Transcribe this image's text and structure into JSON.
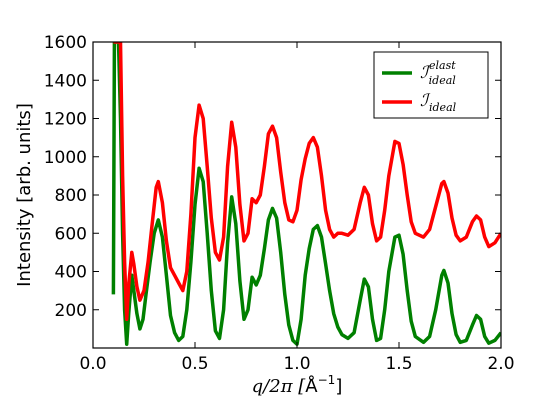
{
  "chart_data": {
    "type": "line",
    "title": "",
    "xlabel_prefix": "q/2π [",
    "xlabel_unit": "Å",
    "xlabel_exp": "−1",
    "xlabel_suffix": "]",
    "ylabel": "Intensity [arb. units]",
    "xlim": [
      0.0,
      2.0
    ],
    "ylim": [
      0,
      1600
    ],
    "x_ticks": [
      {
        "value": 0.0,
        "label": "0.0"
      },
      {
        "value": 0.5,
        "label": "0.5"
      },
      {
        "value": 1.0,
        "label": "1.0"
      },
      {
        "value": 1.5,
        "label": "1.5"
      },
      {
        "value": 2.0,
        "label": "2.0"
      }
    ],
    "y_ticks": [
      {
        "value": 200,
        "label": "200"
      },
      {
        "value": 400,
        "label": "400"
      },
      {
        "value": 600,
        "label": "600"
      },
      {
        "value": 800,
        "label": "800"
      },
      {
        "value": 1000,
        "label": "1000"
      },
      {
        "value": 1200,
        "label": "1200"
      },
      {
        "value": 1400,
        "label": "1400"
      },
      {
        "value": 1600,
        "label": "1600"
      }
    ],
    "grid": false,
    "legend_placement": "top-right",
    "series": [
      {
        "legend_symbol": "ℐ",
        "legend_sup": "elast",
        "legend_sub": "ideal",
        "color": "#008000",
        "points": [
          [
            0.1,
            280
          ],
          [
            0.105,
            1600
          ],
          [
            0.115,
            1600
          ],
          [
            0.125,
            1600
          ],
          [
            0.135,
            1200
          ],
          [
            0.145,
            600
          ],
          [
            0.155,
            200
          ],
          [
            0.165,
            20
          ],
          [
            0.175,
            180
          ],
          [
            0.19,
            380
          ],
          [
            0.2,
            300
          ],
          [
            0.215,
            180
          ],
          [
            0.23,
            100
          ],
          [
            0.245,
            150
          ],
          [
            0.26,
            280
          ],
          [
            0.28,
            450
          ],
          [
            0.3,
            600
          ],
          [
            0.32,
            670
          ],
          [
            0.34,
            580
          ],
          [
            0.36,
            380
          ],
          [
            0.38,
            170
          ],
          [
            0.4,
            80
          ],
          [
            0.42,
            40
          ],
          [
            0.44,
            60
          ],
          [
            0.46,
            200
          ],
          [
            0.48,
            450
          ],
          [
            0.5,
            750
          ],
          [
            0.52,
            940
          ],
          [
            0.54,
            870
          ],
          [
            0.56,
            600
          ],
          [
            0.58,
            300
          ],
          [
            0.6,
            90
          ],
          [
            0.62,
            50
          ],
          [
            0.64,
            200
          ],
          [
            0.66,
            550
          ],
          [
            0.68,
            790
          ],
          [
            0.7,
            650
          ],
          [
            0.72,
            350
          ],
          [
            0.74,
            150
          ],
          [
            0.76,
            200
          ],
          [
            0.78,
            370
          ],
          [
            0.8,
            330
          ],
          [
            0.82,
            380
          ],
          [
            0.84,
            520
          ],
          [
            0.86,
            670
          ],
          [
            0.88,
            730
          ],
          [
            0.9,
            680
          ],
          [
            0.92,
            500
          ],
          [
            0.94,
            280
          ],
          [
            0.96,
            120
          ],
          [
            0.98,
            40
          ],
          [
            1.0,
            20
          ],
          [
            1.02,
            150
          ],
          [
            1.04,
            380
          ],
          [
            1.06,
            520
          ],
          [
            1.08,
            620
          ],
          [
            1.1,
            640
          ],
          [
            1.12,
            580
          ],
          [
            1.14,
            440
          ],
          [
            1.16,
            300
          ],
          [
            1.18,
            180
          ],
          [
            1.2,
            110
          ],
          [
            1.22,
            70
          ],
          [
            1.25,
            50
          ],
          [
            1.28,
            80
          ],
          [
            1.31,
            250
          ],
          [
            1.33,
            360
          ],
          [
            1.35,
            320
          ],
          [
            1.37,
            150
          ],
          [
            1.39,
            40
          ],
          [
            1.41,
            50
          ],
          [
            1.43,
            200
          ],
          [
            1.45,
            400
          ],
          [
            1.48,
            580
          ],
          [
            1.5,
            590
          ],
          [
            1.52,
            490
          ],
          [
            1.54,
            300
          ],
          [
            1.56,
            140
          ],
          [
            1.58,
            60
          ],
          [
            1.62,
            30
          ],
          [
            1.65,
            60
          ],
          [
            1.68,
            200
          ],
          [
            1.71,
            380
          ],
          [
            1.72,
            405
          ],
          [
            1.74,
            340
          ],
          [
            1.76,
            180
          ],
          [
            1.78,
            70
          ],
          [
            1.8,
            30
          ],
          [
            1.83,
            40
          ],
          [
            1.86,
            120
          ],
          [
            1.88,
            170
          ],
          [
            1.9,
            150
          ],
          [
            1.92,
            60
          ],
          [
            1.94,
            25
          ],
          [
            1.97,
            40
          ],
          [
            2.0,
            80
          ]
        ]
      },
      {
        "legend_symbol": "ℐ",
        "legend_sup": "",
        "legend_sub": "ideal",
        "color": "#ff0000",
        "points": [
          [
            0.1,
            1600
          ],
          [
            0.12,
            1600
          ],
          [
            0.135,
            1600
          ],
          [
            0.145,
            900
          ],
          [
            0.155,
            450
          ],
          [
            0.165,
            150
          ],
          [
            0.175,
            330
          ],
          [
            0.19,
            500
          ],
          [
            0.2,
            440
          ],
          [
            0.215,
            320
          ],
          [
            0.23,
            250
          ],
          [
            0.25,
            300
          ],
          [
            0.27,
            450
          ],
          [
            0.29,
            650
          ],
          [
            0.31,
            840
          ],
          [
            0.32,
            870
          ],
          [
            0.34,
            760
          ],
          [
            0.36,
            560
          ],
          [
            0.38,
            420
          ],
          [
            0.4,
            380
          ],
          [
            0.42,
            340
          ],
          [
            0.44,
            300
          ],
          [
            0.46,
            400
          ],
          [
            0.48,
            700
          ],
          [
            0.5,
            1100
          ],
          [
            0.52,
            1270
          ],
          [
            0.54,
            1200
          ],
          [
            0.56,
            950
          ],
          [
            0.58,
            680
          ],
          [
            0.6,
            500
          ],
          [
            0.62,
            460
          ],
          [
            0.64,
            580
          ],
          [
            0.66,
            950
          ],
          [
            0.68,
            1180
          ],
          [
            0.7,
            1050
          ],
          [
            0.72,
            750
          ],
          [
            0.74,
            560
          ],
          [
            0.76,
            600
          ],
          [
            0.78,
            780
          ],
          [
            0.8,
            760
          ],
          [
            0.82,
            800
          ],
          [
            0.84,
            950
          ],
          [
            0.86,
            1120
          ],
          [
            0.88,
            1160
          ],
          [
            0.9,
            1100
          ],
          [
            0.92,
            920
          ],
          [
            0.94,
            760
          ],
          [
            0.96,
            670
          ],
          [
            0.98,
            660
          ],
          [
            1.0,
            720
          ],
          [
            1.02,
            880
          ],
          [
            1.04,
            990
          ],
          [
            1.06,
            1070
          ],
          [
            1.08,
            1100
          ],
          [
            1.1,
            1050
          ],
          [
            1.12,
            900
          ],
          [
            1.14,
            720
          ],
          [
            1.16,
            620
          ],
          [
            1.18,
            580
          ],
          [
            1.2,
            600
          ],
          [
            1.22,
            600
          ],
          [
            1.25,
            590
          ],
          [
            1.28,
            620
          ],
          [
            1.31,
            760
          ],
          [
            1.33,
            840
          ],
          [
            1.35,
            800
          ],
          [
            1.37,
            650
          ],
          [
            1.39,
            560
          ],
          [
            1.41,
            580
          ],
          [
            1.43,
            720
          ],
          [
            1.45,
            900
          ],
          [
            1.48,
            1080
          ],
          [
            1.5,
            1070
          ],
          [
            1.52,
            960
          ],
          [
            1.54,
            800
          ],
          [
            1.56,
            660
          ],
          [
            1.58,
            600
          ],
          [
            1.62,
            580
          ],
          [
            1.65,
            620
          ],
          [
            1.68,
            740
          ],
          [
            1.71,
            860
          ],
          [
            1.72,
            870
          ],
          [
            1.74,
            810
          ],
          [
            1.76,
            680
          ],
          [
            1.78,
            590
          ],
          [
            1.8,
            560
          ],
          [
            1.83,
            580
          ],
          [
            1.86,
            660
          ],
          [
            1.88,
            690
          ],
          [
            1.9,
            670
          ],
          [
            1.92,
            580
          ],
          [
            1.94,
            530
          ],
          [
            1.97,
            550
          ],
          [
            2.0,
            600
          ]
        ]
      }
    ]
  }
}
